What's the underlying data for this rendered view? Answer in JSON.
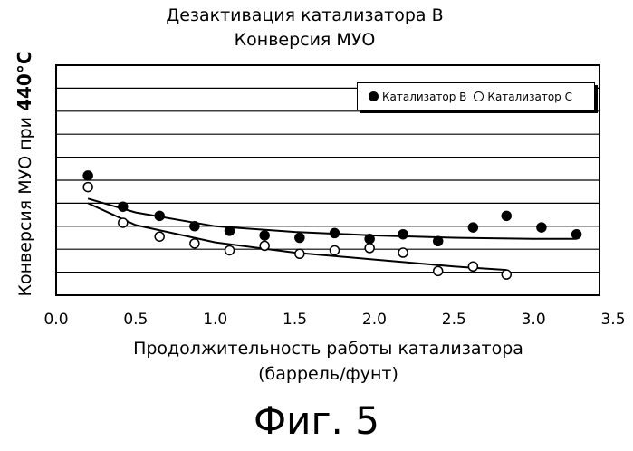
{
  "chart_data": {
    "type": "scatter",
    "title_line1": "Дезактивация катализатора B",
    "title_line2": "Конверсия МУО",
    "xlabel_line1": "Продолжительность работы катализатора",
    "xlabel_line2": "(баррель/фунт)",
    "ylabel_text": "Конверсия МУО при ",
    "ylabel_bold": "440°C",
    "xlim": [
      0,
      3.5
    ],
    "ylim": [
      0,
      10
    ],
    "x_ticks": [
      "0.0",
      "0.5",
      "1.0",
      "1.5",
      "2.0",
      "2.5",
      "3.0",
      "3.5"
    ],
    "gridlines": "horizontal",
    "legend_position": "top-right",
    "series": [
      {
        "name": "Катализатор B",
        "marker": "filled",
        "color": "#000000",
        "points": [
          [
            0.2,
            5.2
          ],
          [
            0.42,
            3.85
          ],
          [
            0.65,
            3.45
          ],
          [
            0.87,
            3.0
          ],
          [
            1.09,
            2.8
          ],
          [
            1.31,
            2.6
          ],
          [
            1.53,
            2.5
          ],
          [
            1.75,
            2.7
          ],
          [
            1.97,
            2.45
          ],
          [
            2.18,
            2.65
          ],
          [
            2.4,
            2.35
          ],
          [
            2.62,
            2.95
          ],
          [
            2.83,
            3.45
          ],
          [
            3.05,
            2.95
          ],
          [
            3.27,
            2.65
          ]
        ],
        "trend": [
          [
            0.2,
            4.2
          ],
          [
            0.5,
            3.6
          ],
          [
            1.0,
            3.0
          ],
          [
            1.5,
            2.75
          ],
          [
            2.0,
            2.6
          ],
          [
            2.5,
            2.5
          ],
          [
            3.0,
            2.45
          ],
          [
            3.27,
            2.45
          ]
        ]
      },
      {
        "name": "Катализатор C",
        "marker": "open",
        "color": "#000000",
        "points": [
          [
            0.2,
            4.7
          ],
          [
            0.42,
            3.15
          ],
          [
            0.65,
            2.55
          ],
          [
            0.87,
            2.25
          ],
          [
            1.09,
            1.95
          ],
          [
            1.31,
            2.15
          ],
          [
            1.53,
            1.8
          ],
          [
            1.75,
            1.95
          ],
          [
            1.97,
            2.05
          ],
          [
            2.18,
            1.85
          ],
          [
            2.4,
            1.05
          ],
          [
            2.62,
            1.25
          ],
          [
            2.83,
            0.9
          ]
        ],
        "trend": [
          [
            0.2,
            4.0
          ],
          [
            0.5,
            3.05
          ],
          [
            1.0,
            2.3
          ],
          [
            1.5,
            1.85
          ],
          [
            2.0,
            1.55
          ],
          [
            2.5,
            1.25
          ],
          [
            2.83,
            1.1
          ]
        ]
      }
    ]
  },
  "caption": "Фиг. 5"
}
